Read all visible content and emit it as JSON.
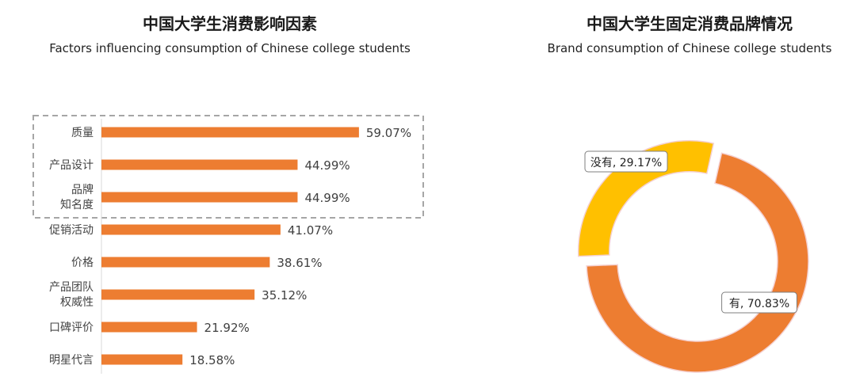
{
  "chart_data": [
    {
      "type": "bar",
      "orientation": "horizontal",
      "title": "中国大学生消费影响因素",
      "subtitle": "Factors influencing consumption of Chinese  college students",
      "categories": [
        "质量",
        "产品设计",
        "品牌\n知名度",
        "促销活动",
        "价格",
        "产品团队\n权威性",
        "口碑评价",
        "明星代言"
      ],
      "values": [
        59.07,
        44.99,
        44.99,
        41.07,
        38.61,
        35.12,
        21.92,
        18.58
      ],
      "value_labels": [
        "59.07%",
        "44.99%",
        "44.99%",
        "41.07%",
        "38.61%",
        "35.12%",
        "21.92%",
        "18.58%"
      ],
      "unit": "%",
      "highlight_box": "top 3 categories (dashed)",
      "color": "#ED7D31",
      "grid": false,
      "legend": "none"
    },
    {
      "type": "pie",
      "style": "donut",
      "title": "中国大学生固定消费品牌情况",
      "subtitle": "Brand consumption of Chinese college students",
      "slices": [
        {
          "label": "有",
          "value": 70.83,
          "display": "有, 70.83%",
          "color": "#ED7D31"
        },
        {
          "label": "没有",
          "value": 29.17,
          "display": "没有, 29.17%",
          "color": "#FFC000"
        }
      ],
      "legend": "none"
    }
  ]
}
